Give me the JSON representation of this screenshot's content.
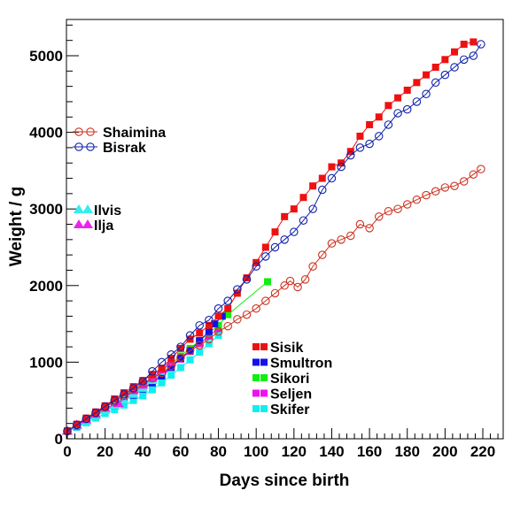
{
  "chart_data": {
    "type": "scatter",
    "xlabel": "Days since birth",
    "ylabel": "Weight / g",
    "xlim": [
      0,
      232
    ],
    "ylim": [
      0,
      5400
    ],
    "x_ticks": [
      0,
      20,
      40,
      60,
      80,
      100,
      120,
      140,
      160,
      180,
      200,
      220
    ],
    "y_ticks": [
      0,
      1000,
      2000,
      3000,
      4000,
      5000
    ],
    "grid": false,
    "series": [
      {
        "name": "Shaimina",
        "color": "#cc3322",
        "marker": "circle-open",
        "x": [
          0,
          5,
          10,
          15,
          20,
          25,
          30,
          35,
          40,
          45,
          50,
          55,
          60,
          65,
          70,
          75,
          80,
          85,
          90,
          95,
          100,
          105,
          110,
          115,
          118,
          122,
          126,
          130,
          135,
          140,
          145,
          150,
          155,
          160,
          165,
          170,
          175,
          180,
          185,
          190,
          195,
          200,
          205,
          210,
          215,
          219
        ],
        "y": [
          100,
          180,
          260,
          330,
          410,
          480,
          560,
          640,
          720,
          790,
          860,
          950,
          1060,
          1150,
          1220,
          1300,
          1400,
          1470,
          1560,
          1620,
          1700,
          1800,
          1900,
          2000,
          2060,
          1980,
          2080,
          2250,
          2400,
          2550,
          2600,
          2650,
          2800,
          2750,
          2900,
          2970,
          3000,
          3060,
          3120,
          3180,
          3230,
          3280,
          3300,
          3360,
          3450,
          3520
        ]
      },
      {
        "name": "Bisrak",
        "color": "#1122aa",
        "marker": "circle-open",
        "x": [
          0,
          5,
          10,
          15,
          20,
          25,
          30,
          35,
          40,
          45,
          50,
          55,
          60,
          65,
          70,
          75,
          80,
          85,
          90,
          95,
          100,
          105,
          110,
          115,
          120,
          125,
          130,
          135,
          140,
          145,
          150,
          155,
          160,
          165,
          170,
          175,
          180,
          185,
          190,
          195,
          200,
          205,
          210,
          215,
          219
        ],
        "y": [
          100,
          180,
          260,
          340,
          420,
          500,
          580,
          660,
          750,
          880,
          1000,
          1100,
          1200,
          1350,
          1480,
          1550,
          1700,
          1800,
          1950,
          2080,
          2250,
          2380,
          2500,
          2600,
          2700,
          2850,
          3000,
          3250,
          3400,
          3550,
          3700,
          3800,
          3850,
          3950,
          4100,
          4250,
          4300,
          4400,
          4500,
          4650,
          4750,
          4850,
          4950,
          5000,
          5150
        ]
      },
      {
        "name": "Ilvis",
        "color": "#33eeee",
        "marker": "triangle-filled",
        "x": [
          0,
          5,
          10,
          15,
          20,
          25,
          30,
          35,
          40,
          45,
          50,
          55
        ],
        "y": [
          100,
          170,
          230,
          300,
          370,
          430,
          500,
          580,
          660,
          760,
          880,
          1000
        ]
      },
      {
        "name": "Ilja",
        "color": "#ee22ee",
        "marker": "triangle-filled",
        "x": [
          0,
          5,
          10,
          15,
          20,
          27,
          35,
          40,
          45,
          50,
          55
        ],
        "y": [
          100,
          180,
          250,
          320,
          400,
          460,
          630,
          700,
          790,
          900,
          1000
        ]
      },
      {
        "name": "Sisik",
        "color": "#ee1111",
        "marker": "square-filled",
        "x": [
          0,
          5,
          10,
          15,
          20,
          25,
          30,
          35,
          40,
          45,
          50,
          55,
          60,
          65,
          70,
          75,
          80,
          85,
          90,
          95,
          100,
          105,
          110,
          115,
          120,
          125,
          130,
          135,
          140,
          145,
          150,
          155,
          160,
          165,
          170,
          175,
          180,
          185,
          190,
          195,
          200,
          205,
          210,
          215
        ],
        "y": [
          100,
          190,
          270,
          350,
          430,
          520,
          600,
          680,
          760,
          840,
          920,
          1050,
          1180,
          1300,
          1380,
          1480,
          1600,
          1700,
          1900,
          2100,
          2300,
          2500,
          2700,
          2900,
          3000,
          3150,
          3300,
          3400,
          3550,
          3600,
          3750,
          3950,
          4100,
          4200,
          4350,
          4450,
          4550,
          4650,
          4750,
          4850,
          4950,
          5050,
          5150,
          5180
        ]
      },
      {
        "name": "Smultron",
        "color": "#1111ee",
        "marker": "square-filled",
        "x": [
          0,
          5,
          10,
          15,
          20,
          25,
          30,
          35,
          40,
          45,
          50,
          55,
          60,
          65,
          70,
          75,
          78,
          82
        ],
        "y": [
          100,
          170,
          240,
          300,
          370,
          430,
          500,
          570,
          650,
          730,
          820,
          930,
          1050,
          1150,
          1280,
          1400,
          1500,
          1600
        ]
      },
      {
        "name": "Sikori",
        "color": "#11ee11",
        "marker": "square-filled",
        "x": [
          0,
          5,
          10,
          15,
          20,
          25,
          30,
          35,
          40,
          45,
          50,
          55,
          60,
          65,
          70,
          75,
          80,
          85,
          106
        ],
        "y": [
          100,
          170,
          240,
          310,
          380,
          450,
          530,
          610,
          690,
          780,
          880,
          980,
          1080,
          1180,
          1280,
          1380,
          1480,
          1620,
          2050
        ]
      },
      {
        "name": "Seljen",
        "color": "#ee11ee",
        "marker": "square-filled",
        "x": [
          0,
          5,
          10,
          15,
          20,
          25,
          30,
          35,
          40,
          45,
          50,
          55,
          60,
          65,
          70,
          75,
          80
        ],
        "y": [
          100,
          160,
          230,
          300,
          370,
          440,
          510,
          590,
          670,
          750,
          840,
          940,
          1040,
          1140,
          1240,
          1340,
          1440
        ]
      },
      {
        "name": "Skifer",
        "color": "#11eeee",
        "marker": "square-filled",
        "x": [
          0,
          5,
          10,
          15,
          20,
          25,
          30,
          35,
          40,
          45,
          50,
          55,
          60,
          65,
          70,
          75,
          80
        ],
        "y": [
          100,
          150,
          210,
          270,
          330,
          380,
          440,
          500,
          560,
          640,
          730,
          830,
          930,
          1030,
          1130,
          1240,
          1350
        ]
      }
    ],
    "legends": [
      {
        "entries": [
          "Shaimina",
          "Bisrak"
        ],
        "placement": "upper-left"
      },
      {
        "entries": [
          "Ilvis",
          "Ilja"
        ],
        "placement": "middle-left"
      },
      {
        "entries": [
          "Sisik",
          "Smultron",
          "Sikori",
          "Seljen",
          "Skifer"
        ],
        "placement": "lower-center"
      }
    ]
  }
}
